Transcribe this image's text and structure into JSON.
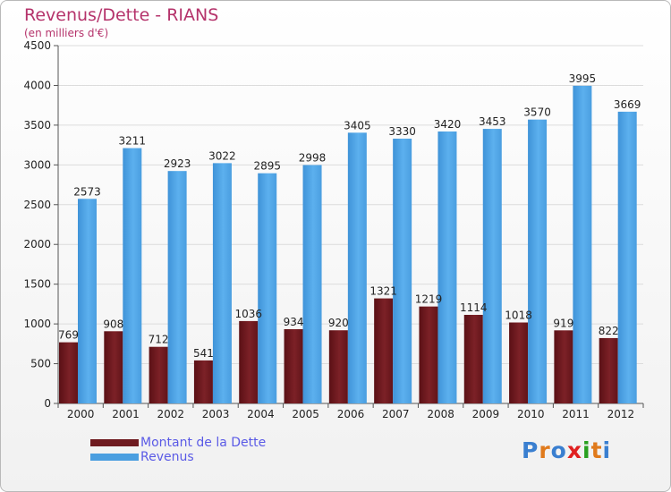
{
  "title": "Revenus/Dette - RIANS",
  "subtitle": "(en milliers d'€)",
  "colors": {
    "dette": "#6e1a1f",
    "revenus": "#4a9ee0",
    "title": "#b5336b",
    "legend_text": "#5a5ae6"
  },
  "legend": {
    "dette_label": "Montant de la Dette",
    "revenus_label": "Revenus"
  },
  "logo": {
    "text": "Proxiti",
    "letter_colors": [
      "#3a7fd0",
      "#e07a1c",
      "#3a7fd0",
      "#e02020",
      "#2aa020",
      "#e07a1c",
      "#3a7fd0"
    ]
  },
  "chart_data": {
    "type": "bar",
    "categories": [
      "2000",
      "2001",
      "2002",
      "2003",
      "2004",
      "2005",
      "2006",
      "2007",
      "2008",
      "2009",
      "2010",
      "2011",
      "2012"
    ],
    "series": [
      {
        "name": "Montant de la Dette",
        "values": [
          769,
          908,
          712,
          541,
          1036,
          934,
          920,
          1321,
          1219,
          1114,
          1018,
          919,
          822
        ],
        "labels": [
          "769",
          "908",
          "712",
          "541",
          "1036",
          "934",
          "920",
          "1321",
          "1219",
          "1114",
          "1018",
          "919",
          "822"
        ]
      },
      {
        "name": "Revenus",
        "values": [
          2573,
          3211,
          2923,
          3022,
          2895,
          2998,
          3405,
          3330,
          3420,
          3453,
          3570,
          3995,
          3669
        ],
        "labels": [
          "2573",
          "3211",
          "2923",
          "3022",
          "2895",
          "2998",
          "3405",
          "3330",
          "3420",
          "3453",
          "3570",
          "3995",
          "3669"
        ]
      }
    ],
    "yticks": [
      "0",
      "500",
      "1000",
      "1500",
      "2000",
      "2500",
      "3000",
      "3500",
      "4000",
      "4500"
    ],
    "ylim": [
      0,
      4500
    ],
    "grid": true,
    "legend_position": "bottom-left"
  }
}
